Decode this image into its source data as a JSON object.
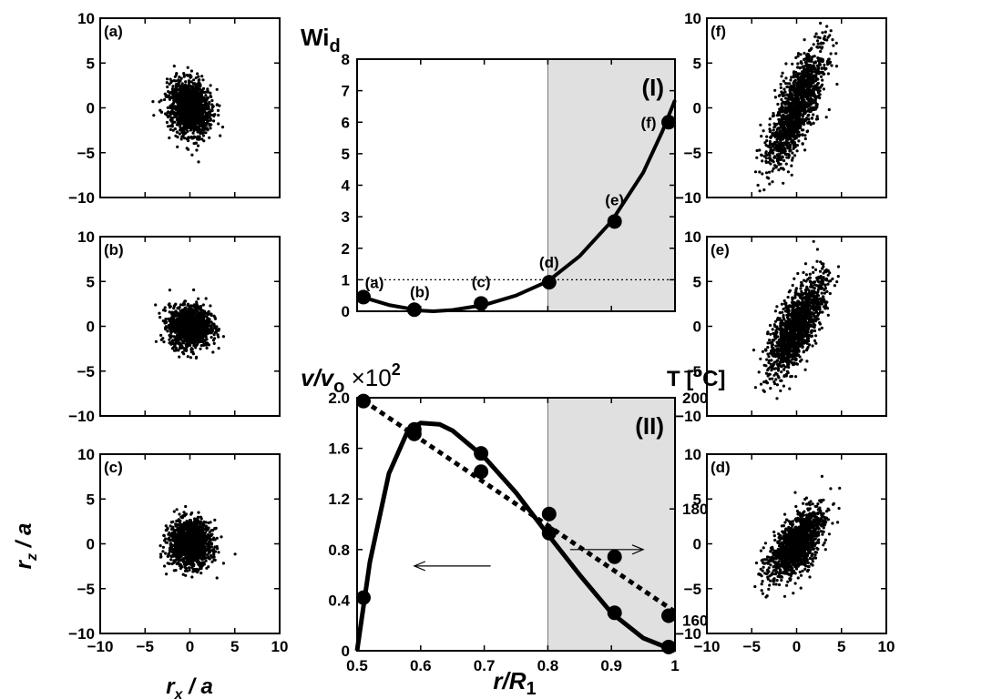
{
  "chart_data": [
    {
      "type": "scatter",
      "id": "a",
      "panel_label": "(a)",
      "xlim": [
        -10,
        10
      ],
      "ylim": [
        -10,
        10
      ],
      "xticks": [
        -10,
        -5,
        0,
        5,
        10
      ],
      "yticks": [
        -10,
        -5,
        0,
        5,
        10
      ],
      "distribution": {
        "center": [
          0,
          0
        ],
        "semi_axes": [
          2.6,
          3.6
        ],
        "tilt_deg": 15
      },
      "color": "#000000"
    },
    {
      "type": "scatter",
      "id": "b",
      "panel_label": "(b)",
      "xlim": [
        -10,
        10
      ],
      "ylim": [
        -10,
        10
      ],
      "xticks": [
        -10,
        -5,
        0,
        5,
        10
      ],
      "yticks": [
        -10,
        -5,
        0,
        5,
        10
      ],
      "distribution": {
        "center": [
          0,
          0
        ],
        "semi_axes": [
          2.7,
          2.7
        ],
        "tilt_deg": 0
      },
      "color": "#000000"
    },
    {
      "type": "scatter",
      "id": "c",
      "panel_label": "(c)",
      "xlim": [
        -10,
        10
      ],
      "ylim": [
        -10,
        10
      ],
      "xticks": [
        -10,
        -5,
        0,
        5,
        10
      ],
      "yticks": [
        -10,
        -5,
        0,
        5,
        10
      ],
      "distribution": {
        "center": [
          0,
          0
        ],
        "semi_axes": [
          2.8,
          3.0
        ],
        "tilt_deg": 0
      },
      "color": "#000000",
      "xlabel": "r_x / a",
      "ylabel": "r_z / a"
    },
    {
      "type": "scatter",
      "id": "f",
      "panel_label": "(f)",
      "xlim": [
        -10,
        10
      ],
      "ylim": [
        -10,
        10
      ],
      "xticks": [
        -10,
        -5,
        0,
        5,
        10
      ],
      "yticks": [
        -10,
        -5,
        0,
        5,
        10
      ],
      "distribution": {
        "center": [
          0,
          0
        ],
        "semi_axes": [
          2.3,
          8.2
        ],
        "tilt_deg": -22
      },
      "color": "#000000"
    },
    {
      "type": "scatter",
      "id": "e",
      "panel_label": "(e)",
      "xlim": [
        -10,
        10
      ],
      "ylim": [
        -10,
        10
      ],
      "xticks": [
        -10,
        -5,
        0,
        5,
        10
      ],
      "yticks": [
        -10,
        -5,
        0,
        5,
        10
      ],
      "distribution": {
        "center": [
          0,
          0
        ],
        "semi_axes": [
          2.3,
          7.0
        ],
        "tilt_deg": -25
      },
      "color": "#000000"
    },
    {
      "type": "scatter",
      "id": "d",
      "panel_label": "(d)",
      "xlim": [
        -10,
        10
      ],
      "ylim": [
        -10,
        10
      ],
      "xticks": [
        -10,
        -5,
        0,
        5,
        10
      ],
      "yticks": [
        -10,
        -5,
        0,
        5,
        10
      ],
      "distribution": {
        "center": [
          0,
          0
        ],
        "semi_axes": [
          2.4,
          5.2
        ],
        "tilt_deg": -35
      },
      "color": "#000000",
      "xlabel": ""
    },
    {
      "type": "line",
      "id": "I",
      "panel_label": "(I)",
      "ylabel_main": "Wi",
      "ylabel_sub": "d",
      "xlim": [
        0.5,
        1.0
      ],
      "ylim": [
        0,
        8
      ],
      "yticks": [
        0,
        1,
        2,
        3,
        4,
        5,
        6,
        7,
        8
      ],
      "shaded_region": [
        0.8,
        1.0
      ],
      "shade_color": "#e0e0e0",
      "reference_line": {
        "y": 1,
        "style": "dotted"
      },
      "curve": {
        "x": [
          0.5,
          0.55,
          0.6,
          0.62,
          0.65,
          0.7,
          0.75,
          0.8,
          0.85,
          0.9,
          0.95,
          0.98,
          1.0
        ],
        "y": [
          0.5,
          0.2,
          0.02,
          0.0,
          0.04,
          0.2,
          0.5,
          0.95,
          1.75,
          2.85,
          4.4,
          5.7,
          6.7
        ]
      },
      "points": [
        {
          "x": 0.51,
          "y": 0.45,
          "label": "(a)"
        },
        {
          "x": 0.59,
          "y": 0.05,
          "label": "(b)"
        },
        {
          "x": 0.695,
          "y": 0.25,
          "label": "(c)"
        },
        {
          "x": 0.802,
          "y": 0.92,
          "label": "(d)"
        },
        {
          "x": 0.905,
          "y": 2.85,
          "label": "(e)"
        },
        {
          "x": 0.99,
          "y": 6.0,
          "label": "(f)"
        }
      ]
    },
    {
      "type": "line",
      "id": "II",
      "panel_label": "(II)",
      "xlabel_main": "r/R",
      "xlabel_sub": "1",
      "ylabel_left": "v/v",
      "ylabel_left_sub": "o",
      "ylabel_left_factor": "×10",
      "ylabel_left_exp": "2",
      "ylabel_right": "T [",
      "ylabel_right_sup": "o",
      "ylabel_right_unit": "C]",
      "xlim": [
        0.5,
        1.0
      ],
      "xticks": [
        0.5,
        0.6,
        0.7,
        0.8,
        0.9,
        1.0
      ],
      "xtick_labels": [
        "0.5",
        "0.6",
        "0.7",
        "0.8",
        "0.9",
        "1"
      ],
      "ylim_left": [
        0,
        2.0
      ],
      "yticks_left": [
        0,
        0.4,
        0.8,
        1.2,
        1.6,
        2.0
      ],
      "ytick_labels_left": [
        "0",
        "0.4",
        "0.8",
        "1.2",
        "1.6",
        "2.0"
      ],
      "ylim_right": [
        154.5,
        200
      ],
      "yticks_right": [
        160,
        180,
        200
      ],
      "ytick_labels_right": [
        "160",
        "180",
        "200"
      ],
      "shaded_region": [
        0.8,
        1.0
      ],
      "shade_color": "#e0e0e0",
      "series": [
        {
          "axis": "left",
          "style": "solid",
          "x": [
            0.5,
            0.52,
            0.55,
            0.58,
            0.6,
            0.63,
            0.65,
            0.7,
            0.75,
            0.8,
            0.85,
            0.9,
            0.95,
            1.0
          ],
          "y": [
            0.0,
            0.7,
            1.4,
            1.74,
            1.8,
            1.79,
            1.74,
            1.53,
            1.25,
            0.92,
            0.6,
            0.3,
            0.1,
            0.0
          ],
          "points_x": [
            0.51,
            0.59,
            0.695,
            0.802,
            0.905,
            0.99
          ],
          "points_y": [
            0.42,
            1.75,
            1.56,
            0.93,
            0.3,
            0.03
          ]
        },
        {
          "axis": "right",
          "style": "dotted",
          "x": [
            0.51,
            1.0
          ],
          "y": [
            199.5,
            161.5
          ],
          "points_x": [
            0.51,
            0.59,
            0.695,
            0.802,
            0.905,
            0.99
          ],
          "points_y": [
            199.4,
            193.5,
            186.7,
            179.1,
            171.4,
            160.8
          ]
        }
      ],
      "arrows": [
        {
          "from": [
            0.71,
            0.67
          ],
          "to": [
            0.59,
            0.67
          ],
          "points_to": "left axis"
        },
        {
          "from": [
            0.835,
            0.8
          ],
          "to": [
            0.95,
            0.8
          ],
          "points_to": "right axis"
        }
      ]
    }
  ]
}
